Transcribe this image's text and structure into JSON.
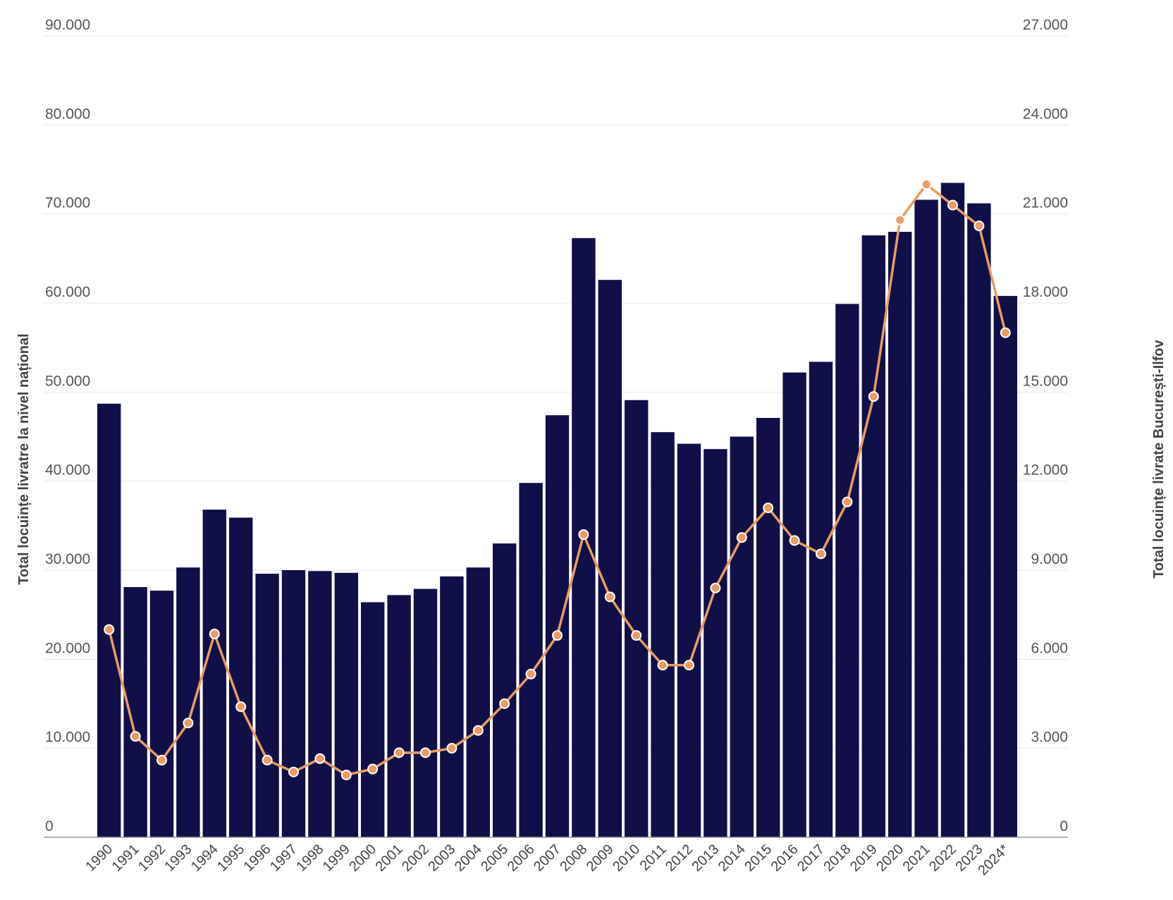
{
  "chart_data": {
    "type": "bar",
    "title": "",
    "categories": [
      "1990",
      "1991",
      "1992",
      "1993",
      "1994",
      "1995",
      "1996",
      "1997",
      "1998",
      "1999",
      "2000",
      "2001",
      "2002",
      "2003",
      "2004",
      "2005",
      "2006",
      "2007",
      "2008",
      "2009",
      "2010",
      "2011",
      "2012",
      "2013",
      "2014",
      "2015",
      "2016",
      "2017",
      "2018",
      "2019",
      "2020",
      "2021",
      "2022",
      "2023",
      "2024*"
    ],
    "series": [
      {
        "name": "Total locuințe livratre la nivel național",
        "type": "bar",
        "axis": "left",
        "color": "#110f47",
        "values": [
          48700,
          28100,
          27700,
          30300,
          36800,
          35900,
          29600,
          30000,
          29900,
          29700,
          26400,
          27200,
          27900,
          29300,
          30300,
          33000,
          39800,
          47400,
          67300,
          62600,
          49100,
          45500,
          44200,
          43600,
          45000,
          47100,
          52200,
          53400,
          59900,
          67600,
          68000,
          71600,
          73500,
          71200,
          60800
        ]
      },
      {
        "name": "Total locuințe livrate București-Ilfov",
        "type": "line",
        "axis": "right",
        "color": "#e89d64",
        "values": [
          7000,
          3400,
          2600,
          3850,
          6850,
          4400,
          2600,
          2200,
          2650,
          2100,
          2300,
          2850,
          2850,
          3000,
          3600,
          4500,
          5500,
          6800,
          10200,
          8100,
          6800,
          5800,
          5800,
          8400,
          10100,
          11100,
          10000,
          9550,
          11300,
          14850,
          20800,
          22000,
          21300,
          20600,
          17000
        ]
      }
    ],
    "yaxis_left": {
      "label": "Total locuințe livratre la nivel național",
      "min": 0,
      "max": 90000,
      "ticks": [
        "0",
        "10.000",
        "20.000",
        "30.000",
        "40.000",
        "50.000",
        "60.000",
        "70.000",
        "80.000",
        "90.000"
      ]
    },
    "yaxis_right": {
      "label": "Total locuințe livrate București-Ilfov",
      "min": 0,
      "max": 27000,
      "ticks": [
        "0",
        "3.000",
        "6.000",
        "9.000",
        "12.000",
        "15.000",
        "18.000",
        "21.000",
        "24.000",
        "27.000"
      ]
    },
    "grid": true
  }
}
